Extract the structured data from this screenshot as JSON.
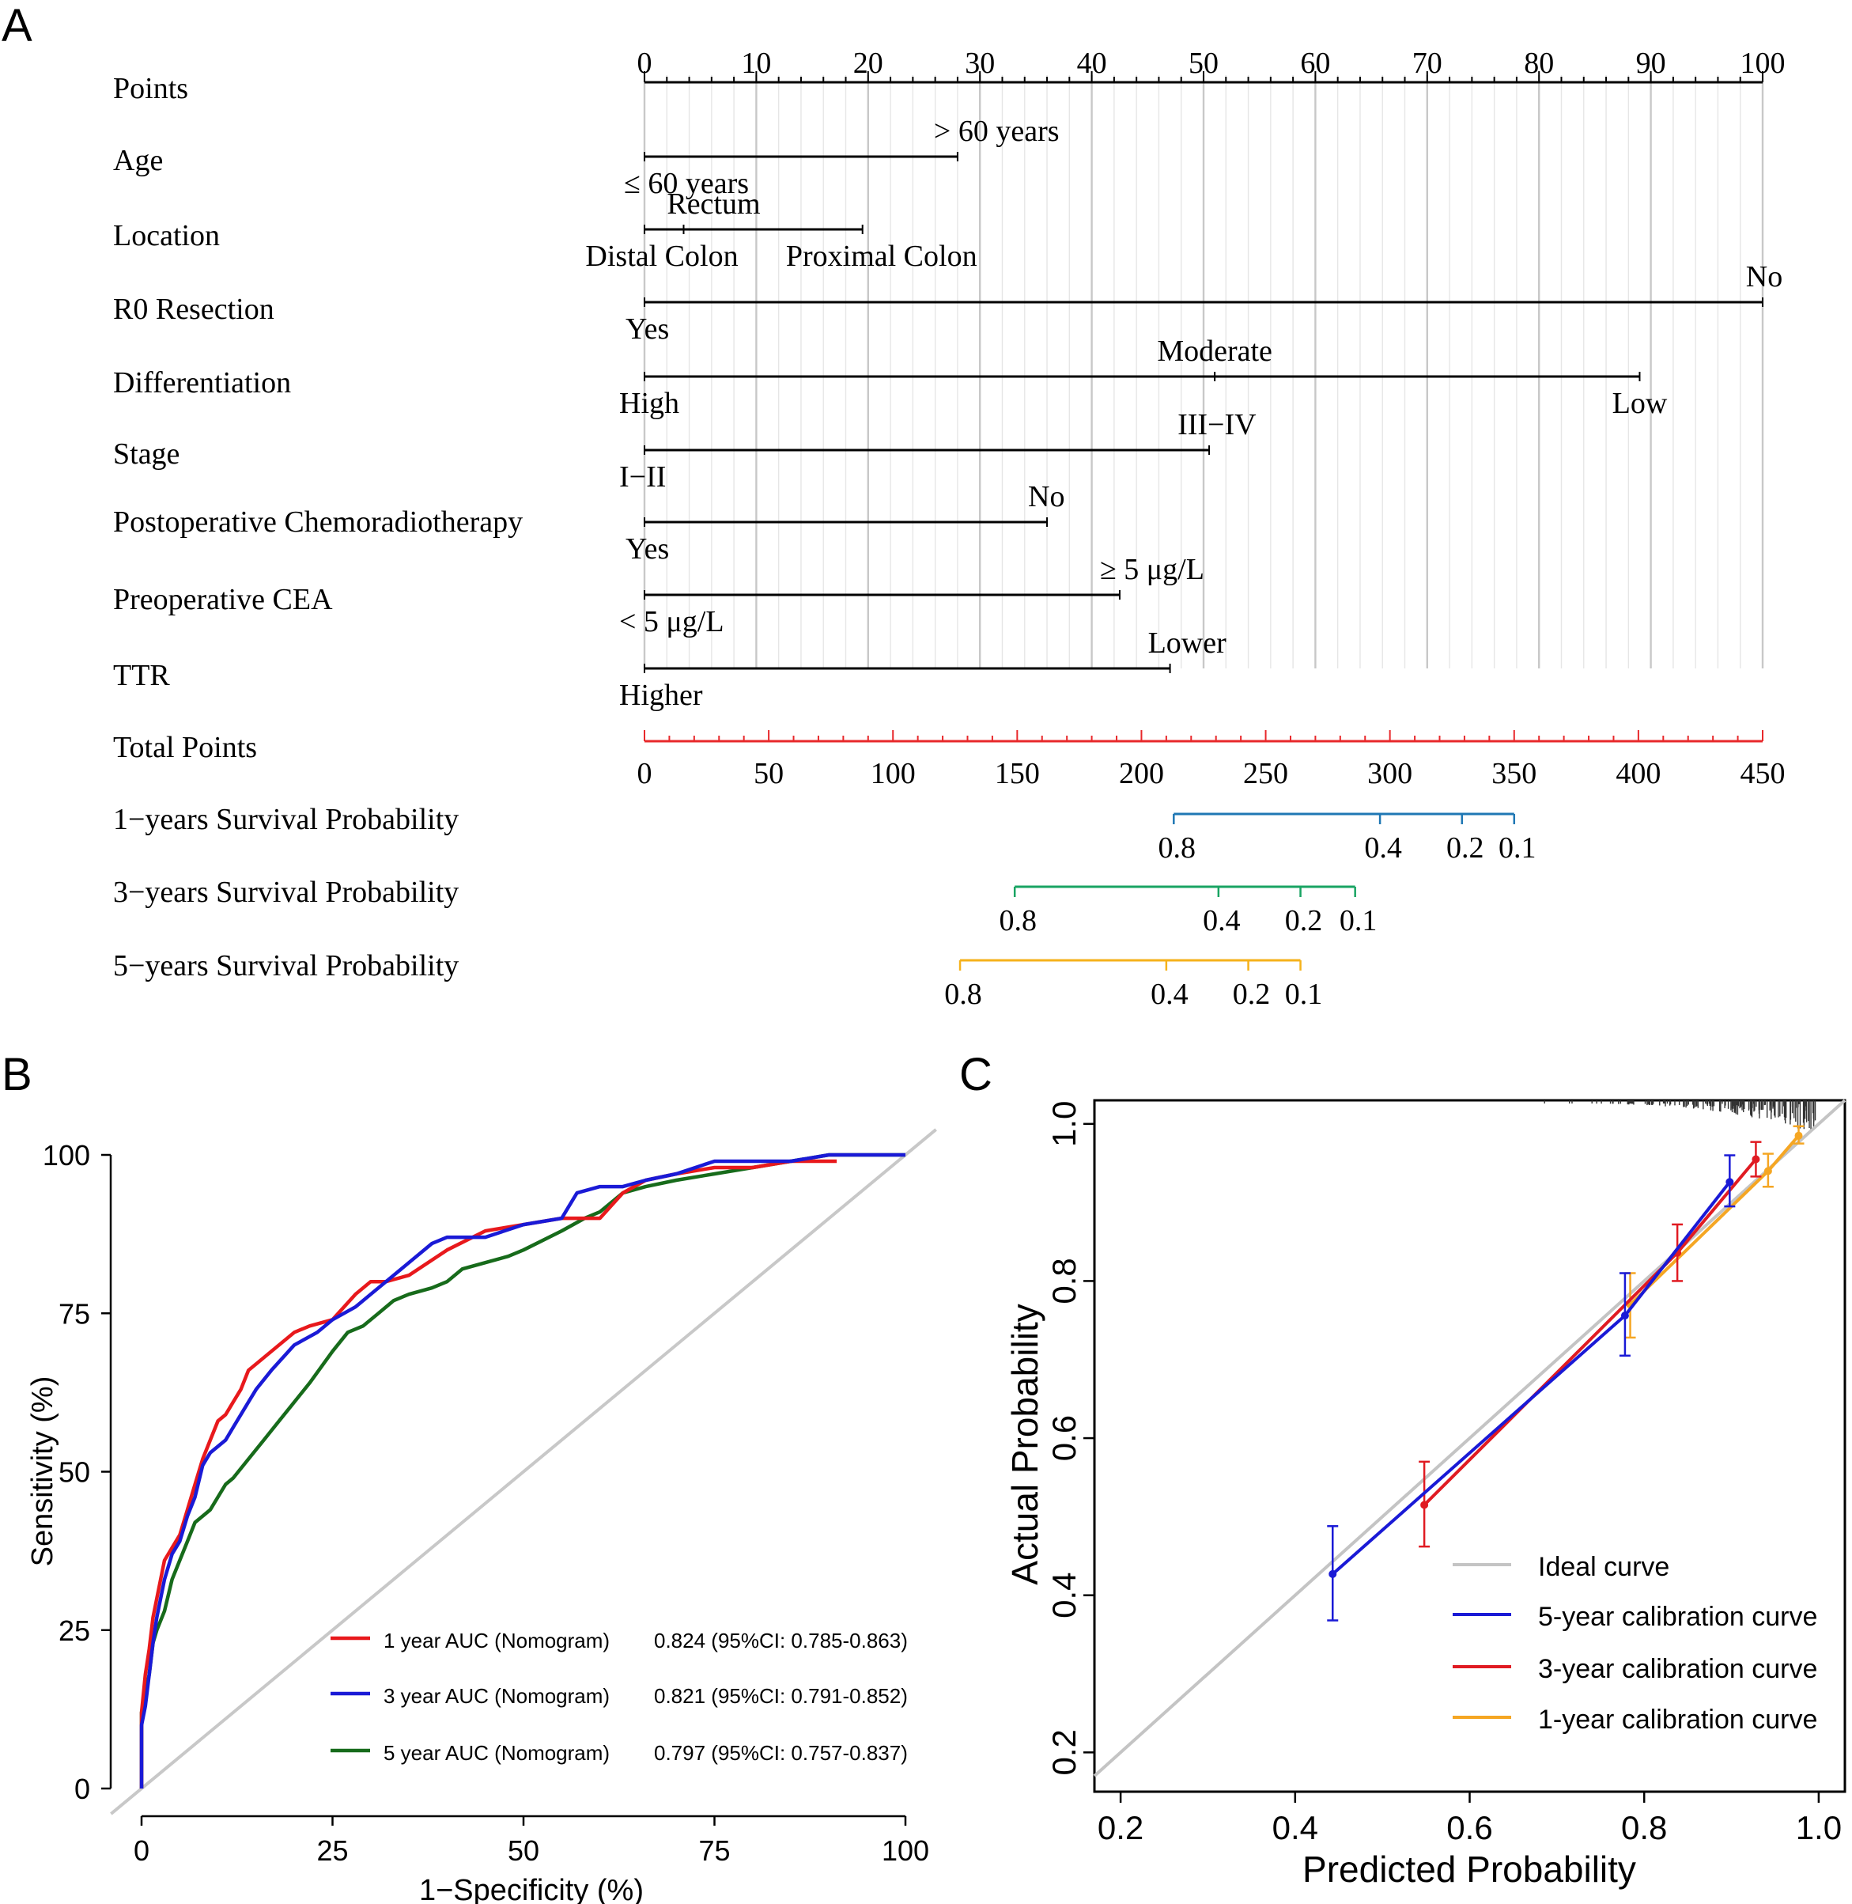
{
  "panels": {
    "a": "A",
    "b": "B",
    "c": "C"
  },
  "colors": {
    "axis": "#000000",
    "grid": "#cfcfcf",
    "total": "#e8282b",
    "surv1": "#1f77b4",
    "surv3": "#19a463",
    "surv5": "#f5b21b",
    "roc1": "#e8191c",
    "roc3": "#1a1ad6",
    "roc5": "#176b1b",
    "diag": "#c8c8c8",
    "cal5": "#1a1ad6",
    "cal3": "#e01b22",
    "cal1": "#f5a623",
    "ideal": "#c4c4c4"
  },
  "chart_data": [
    {
      "id": "nomogram",
      "type": "nomogram",
      "points_scale": {
        "label": "Points",
        "min": 0,
        "max": 100,
        "major": [
          0,
          10,
          20,
          30,
          40,
          50,
          60,
          70,
          80,
          90,
          100
        ]
      },
      "variables": [
        {
          "name": "Age",
          "line_max": 28,
          "levels": [
            {
              "label": "≤ 60 years",
              "points": 0,
              "pos": "below"
            },
            {
              "label": "> 60 years",
              "points": 28,
              "pos": "above"
            }
          ]
        },
        {
          "name": "Location",
          "line_max": 19.5,
          "levels": [
            {
              "label": "Rectum",
              "points": 3.5,
              "pos": "above"
            },
            {
              "label": "Distal Colon",
              "points": 0,
              "pos": "below"
            },
            {
              "label": "Proximal Colon",
              "points": 19.5,
              "pos": "below"
            }
          ]
        },
        {
          "name": "R0 Resection",
          "line_max": 100,
          "levels": [
            {
              "label": "No",
              "points": 100,
              "pos": "above"
            },
            {
              "label": "Yes",
              "points": 0,
              "pos": "below"
            }
          ]
        },
        {
          "name": "Differentiation",
          "line_max": 89,
          "levels": [
            {
              "label": "Moderate",
              "points": 51,
              "pos": "above"
            },
            {
              "label": "High",
              "points": 0,
              "pos": "below"
            },
            {
              "label": "Low",
              "points": 89,
              "pos": "below"
            }
          ]
        },
        {
          "name": "Stage",
          "line_max": 50.5,
          "levels": [
            {
              "label": "III−IV",
              "points": 50.5,
              "pos": "above"
            },
            {
              "label": "I−II",
              "points": 0,
              "pos": "below"
            }
          ]
        },
        {
          "name": "Postoperative Chemoradiotherapy",
          "line_max": 36,
          "levels": [
            {
              "label": "No",
              "points": 36,
              "pos": "above"
            },
            {
              "label": "Yes",
              "points": 0,
              "pos": "below"
            }
          ]
        },
        {
          "name": "Preoperative CEA",
          "line_max": 42.5,
          "levels": [
            {
              "label": "≥ 5 μg/L",
              "points": 42.5,
              "pos": "above"
            },
            {
              "label": "< 5 μg/L",
              "points": 0,
              "pos": "below"
            }
          ]
        },
        {
          "name": "TTR",
          "line_max": 47,
          "levels": [
            {
              "label": "Lower",
              "points": 47,
              "pos": "above"
            },
            {
              "label": "Higher",
              "points": 0,
              "pos": "below"
            }
          ]
        }
      ],
      "total_points": {
        "label": "Total Points",
        "min": 0,
        "max": 450,
        "ticks": [
          0,
          50,
          100,
          150,
          200,
          250,
          300,
          350,
          400,
          450
        ]
      },
      "survival": [
        {
          "label": "1−years Survival Probability",
          "color_key": "surv1",
          "range": [
            213,
            350
          ],
          "ticks": [
            {
              "label": "0.8",
              "tp": 213
            },
            {
              "label": "0.4",
              "tp": 296
            },
            {
              "label": "0.2",
              "tp": 329
            },
            {
              "label": "0.1",
              "tp": 350
            }
          ]
        },
        {
          "label": "3−years Survival Probability",
          "color_key": "surv3",
          "range": [
            149,
            286
          ],
          "ticks": [
            {
              "label": "0.8",
              "tp": 149
            },
            {
              "label": "0.4",
              "tp": 231
            },
            {
              "label": "0.2",
              "tp": 264
            },
            {
              "label": "0.1",
              "tp": 286
            }
          ]
        },
        {
          "label": "5−years Survival Probability",
          "color_key": "surv5",
          "range": [
            127,
            264
          ],
          "ticks": [
            {
              "label": "0.8",
              "tp": 127
            },
            {
              "label": "0.4",
              "tp": 210
            },
            {
              "label": "0.2",
              "tp": 243
            },
            {
              "label": "0.1",
              "tp": 264
            }
          ]
        }
      ]
    },
    {
      "id": "roc",
      "type": "line",
      "xlabel": "1−Specificity (%)",
      "ylabel": "Sensitivity (%)",
      "xlim": [
        0,
        100
      ],
      "ylim": [
        0,
        100
      ],
      "xticks": [
        0,
        25,
        50,
        75,
        100
      ],
      "yticks": [
        0,
        25,
        50,
        75,
        100
      ],
      "series": [
        {
          "name": "1 year AUC (Nomogram)",
          "stat": "0.824 (95%CI: 0.785-0.863)",
          "color_key": "roc1",
          "x": [
            0,
            0,
            0.5,
            1,
            1.5,
            2,
            3,
            4,
            5,
            6,
            7,
            8,
            9,
            10,
            11,
            12,
            13,
            14,
            15,
            17,
            20,
            22,
            25,
            28,
            30,
            32,
            35,
            40,
            45,
            50,
            55,
            60,
            63,
            66,
            70,
            75,
            80,
            85,
            88,
            91
          ],
          "y": [
            0,
            12,
            18,
            22,
            27,
            30,
            36,
            38,
            40,
            44,
            48,
            52,
            55,
            58,
            59,
            61,
            63,
            66,
            67,
            69,
            72,
            73,
            74,
            78,
            80,
            80,
            81,
            85,
            88,
            89,
            90,
            90,
            94,
            96,
            97,
            98,
            98,
            99,
            99,
            99
          ]
        },
        {
          "name": "3 year AUC (Nomogram)",
          "stat": "0.821 (95%CI: 0.791-0.852)",
          "color_key": "roc3",
          "x": [
            0,
            0,
            0.5,
            1,
            1.5,
            2,
            3,
            4,
            5,
            6,
            7,
            8,
            9,
            10,
            11,
            12,
            14,
            15,
            17,
            20,
            23,
            25,
            28,
            30,
            33,
            35,
            38,
            40,
            45,
            50,
            55,
            57,
            60,
            63,
            66,
            70,
            75,
            78,
            85,
            90,
            100
          ],
          "y": [
            0,
            10,
            13,
            18,
            23,
            27,
            33,
            37,
            39,
            43,
            46,
            51,
            53,
            54,
            55,
            57,
            61,
            63,
            66,
            70,
            72,
            74,
            76,
            78,
            81,
            83,
            86,
            87,
            87,
            89,
            90,
            94,
            95,
            95,
            96,
            97,
            99,
            99,
            99,
            100,
            100
          ]
        },
        {
          "name": "5 year AUC (Nomogram)",
          "stat": "0.797 (95%CI: 0.757-0.837)",
          "color_key": "roc5",
          "x": [
            0,
            0,
            0.5,
            1,
            1.5,
            2,
            3,
            4,
            5,
            6,
            7,
            8,
            9,
            10,
            11,
            12,
            14,
            16,
            18,
            20,
            22,
            25,
            27,
            29,
            31,
            33,
            35,
            38,
            40,
            42,
            45,
            48,
            50,
            55,
            58,
            60,
            63,
            66,
            70,
            75,
            80,
            85,
            90,
            100
          ],
          "y": [
            0,
            12,
            15,
            18,
            23,
            25,
            28,
            33,
            36,
            39,
            42,
            43,
            44,
            46,
            48,
            49,
            52,
            55,
            58,
            61,
            64,
            69,
            72,
            73,
            75,
            77,
            78,
            79,
            80,
            82,
            83,
            84,
            85,
            88,
            90,
            91,
            94,
            95,
            96,
            97,
            98,
            99,
            100,
            100
          ]
        }
      ]
    },
    {
      "id": "calibration",
      "type": "line",
      "xlabel": "Predicted Probability",
      "ylabel": "Actual Probability",
      "xlim": [
        0.17,
        1.03
      ],
      "ylim": [
        0.15,
        1.03
      ],
      "xticks": [
        0.2,
        0.4,
        0.6,
        0.8,
        1.0
      ],
      "xtick_labels": [
        "0.2",
        "0.4",
        "0.6",
        "0.8",
        "1.0"
      ],
      "yticks": [
        0.2,
        0.4,
        0.6,
        0.8,
        1.0
      ],
      "ytick_labels": [
        "0.2",
        "0.4",
        "0.6",
        "0.8",
        "1.0"
      ],
      "ideal": {
        "name": "Ideal curve",
        "color_key": "ideal"
      },
      "series": [
        {
          "name": "5-year calibration curve",
          "color_key": "cal5",
          "points": [
            {
              "x": 0.443,
              "y": 0.427,
              "lo": 0.368,
              "hi": 0.488
            },
            {
              "x": 0.778,
              "y": 0.756,
              "lo": 0.705,
              "hi": 0.81
            },
            {
              "x": 0.898,
              "y": 0.926,
              "lo": 0.895,
              "hi": 0.96
            }
          ]
        },
        {
          "name": "3-year calibration curve",
          "color_key": "cal3",
          "points": [
            {
              "x": 0.548,
              "y": 0.515,
              "lo": 0.462,
              "hi": 0.57
            },
            {
              "x": 0.838,
              "y": 0.836,
              "lo": 0.8,
              "hi": 0.872
            },
            {
              "x": 0.928,
              "y": 0.955,
              "lo": 0.933,
              "hi": 0.977
            }
          ]
        },
        {
          "name": "1-year calibration curve",
          "color_key": "cal1",
          "points": [
            {
              "x": 0.784,
              "y": 0.77,
              "lo": 0.728,
              "hi": 0.81
            },
            {
              "x": 0.942,
              "y": 0.94,
              "lo": 0.92,
              "hi": 0.962
            },
            {
              "x": 0.977,
              "y": 0.985,
              "lo": 0.975,
              "hi": 0.997
            }
          ]
        }
      ],
      "rug_range": [
        0.68,
        1.0
      ]
    }
  ]
}
